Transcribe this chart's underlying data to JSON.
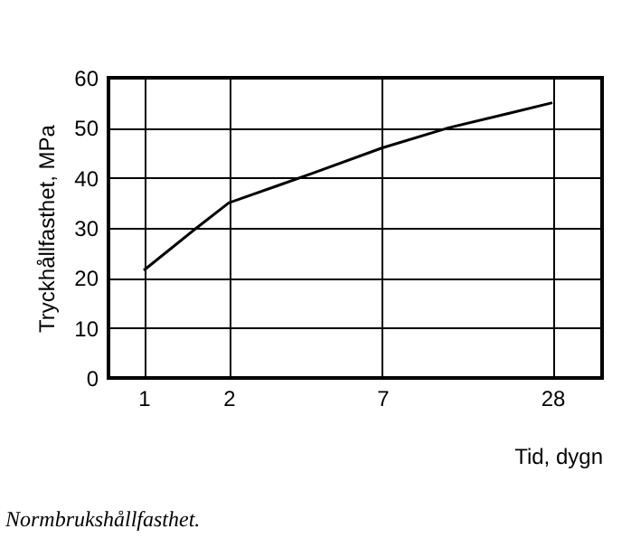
{
  "chart_data": {
    "type": "line",
    "xlabel": "Tid, dygn",
    "ylabel": "Tryckhållfasthet, MPa",
    "annotations": [
      "Normbrukshållfasthet."
    ],
    "x": [
      1,
      1.5,
      2,
      3,
      4,
      7,
      12,
      20,
      28
    ],
    "series": [
      {
        "color": "#000000",
        "values": [
          21.5,
          29.5,
          35,
          38.5,
          41,
          46,
          50,
          53,
          55
        ]
      }
    ],
    "log": "x",
    "xlim": [
      0.75,
      42
    ],
    "xticks": [
      1,
      2,
      7,
      28
    ],
    "ylim": [
      0,
      60
    ],
    "yticks": [
      0,
      10,
      20,
      30,
      40,
      50,
      60
    ],
    "grid": true,
    "marker": "none",
    "line_style": "solid"
  }
}
